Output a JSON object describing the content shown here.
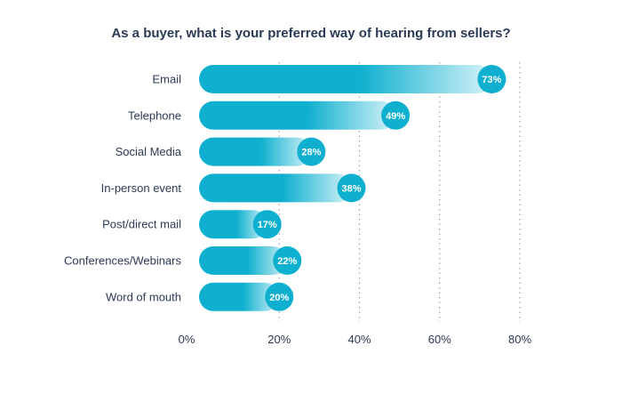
{
  "chart_data": {
    "type": "bar",
    "orientation": "horizontal",
    "title": "As a buyer, what is your preferred way of hearing from sellers?",
    "categories": [
      "Email",
      "Telephone",
      "Social Media",
      "In-person event",
      "Post/direct mail",
      "Conferences/Webinars",
      "Word of mouth"
    ],
    "values": [
      73,
      49,
      28,
      38,
      17,
      22,
      20
    ],
    "value_labels": [
      "73%",
      "49%",
      "28%",
      "38%",
      "17%",
      "22%",
      "20%"
    ],
    "xlim": [
      0,
      80
    ],
    "xticks": [
      0,
      20,
      40,
      60,
      80
    ],
    "xtick_labels": [
      "0%",
      "20%",
      "40%",
      "60%",
      "80%"
    ],
    "xlabel": "",
    "ylabel": "",
    "grid": "vertical dotted",
    "legend": "none",
    "colors": {
      "bar": "#0fb0cf",
      "bar_fade": "#d6f3f8",
      "badge": "#0fb0cf",
      "badge_text": "#ffffff",
      "text": "#2b3a55",
      "grid": "#9aa3ad"
    }
  }
}
